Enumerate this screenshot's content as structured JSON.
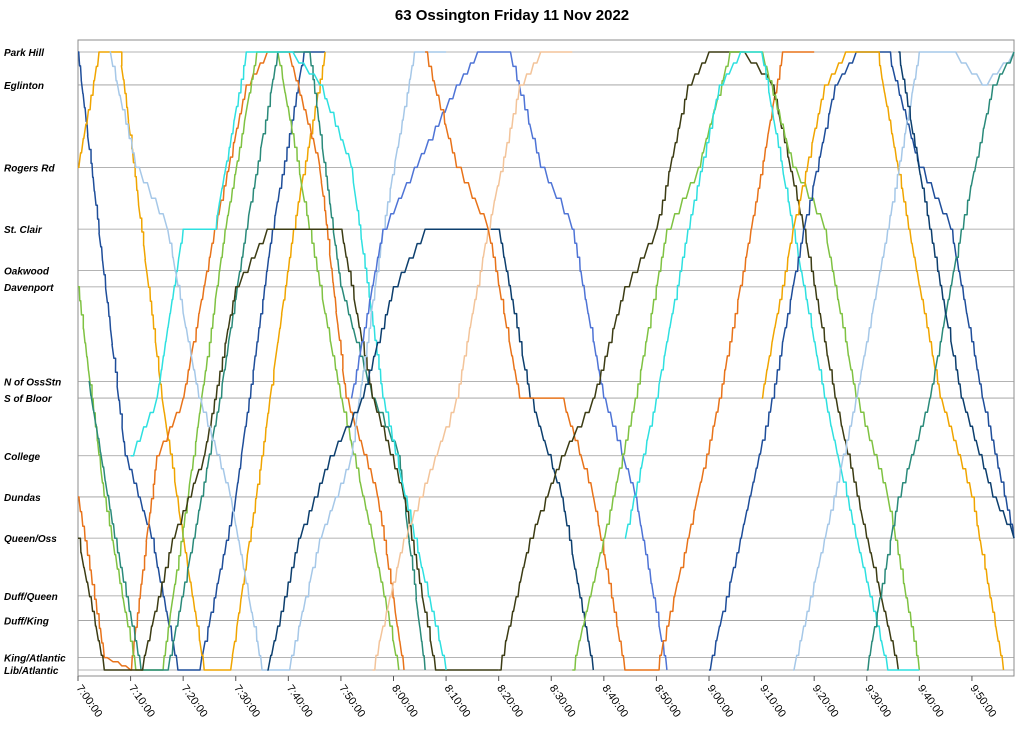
{
  "chart_data": {
    "type": "line",
    "title": "63 Ossington Friday 11 Nov 2022",
    "xlabel": "",
    "ylabel": "",
    "xlim": [
      "7:00:00",
      "9:58:00"
    ],
    "x_ticks": [
      "7:00:00",
      "7:10:00",
      "7:20:00",
      "7:30:00",
      "7:40:00",
      "7:50:00",
      "8:00:00",
      "8:10:00",
      "8:20:00",
      "8:30:00",
      "8:40:00",
      "8:50:00",
      "9:00:00",
      "9:10:00",
      "9:20:00",
      "9:30:00",
      "9:40:00",
      "9:50:00"
    ],
    "stops": [
      {
        "name": "Park Hill",
        "pos": 0
      },
      {
        "name": "Eglinton",
        "pos": 4
      },
      {
        "name": "Rogers Rd",
        "pos": 14
      },
      {
        "name": "St. Clair",
        "pos": 21.5
      },
      {
        "name": "Oakwood",
        "pos": 26.5
      },
      {
        "name": "Davenport",
        "pos": 28.5
      },
      {
        "name": "N of OssStn",
        "pos": 40
      },
      {
        "name": "S of Bloor",
        "pos": 42
      },
      {
        "name": "College",
        "pos": 49
      },
      {
        "name": "Dundas",
        "pos": 54
      },
      {
        "name": "Queen/Oss",
        "pos": 59
      },
      {
        "name": "Duff/Queen",
        "pos": 66
      },
      {
        "name": "Duff/King",
        "pos": 69
      },
      {
        "name": "King/Atlantic",
        "pos": 73.5
      },
      {
        "name": "Lib/Atlantic",
        "pos": 75
      }
    ],
    "grid": true,
    "legend": "none",
    "series": [
      {
        "color": "#1f4e9a",
        "points": [
          [
            "7:00",
            "Park Hill"
          ],
          [
            "7:09",
            "College"
          ],
          [
            "7:14",
            "Queen/Oss"
          ],
          [
            "7:19",
            "Lib/Atlantic"
          ],
          [
            "7:23",
            "Lib/Atlantic"
          ],
          [
            "7:30",
            "Dundas"
          ],
          [
            "7:37",
            "St. Clair"
          ],
          [
            "7:43",
            "Park Hill"
          ],
          [
            "7:47",
            "Park Hill"
          ]
        ]
      },
      {
        "color": "#f0a500",
        "points": [
          [
            "7:00",
            "Rogers Rd"
          ],
          [
            "7:04",
            "Park Hill"
          ],
          [
            "7:08",
            "Park Hill"
          ],
          [
            "7:16",
            "S of Bloor"
          ],
          [
            "7:20",
            "Queen/Oss"
          ],
          [
            "7:24",
            "Lib/Atlantic"
          ],
          [
            "7:29",
            "Lib/Atlantic"
          ],
          [
            "7:35",
            "College"
          ],
          [
            "7:41",
            "St. Clair"
          ],
          [
            "7:47",
            "Park Hill"
          ]
        ]
      },
      {
        "color": "#e8731a",
        "points": [
          [
            "7:00",
            "Dundas"
          ],
          [
            "7:05",
            "King/Atlantic"
          ],
          [
            "7:10",
            "Lib/Atlantic"
          ],
          [
            "7:15",
            "College"
          ],
          [
            "7:20",
            "S of Bloor"
          ],
          [
            "7:26",
            "St. Clair"
          ],
          [
            "7:32",
            "Eglinton"
          ],
          [
            "7:36",
            "Park Hill"
          ],
          [
            "7:40",
            "Park Hill"
          ],
          [
            "7:46",
            "Rogers Rd"
          ],
          [
            "7:51",
            "S of Bloor"
          ],
          [
            "7:57",
            "Dundas"
          ],
          [
            "8:02",
            "Lib/Atlantic"
          ]
        ]
      },
      {
        "color": "#7fc242",
        "points": [
          [
            "7:00",
            "Davenport"
          ],
          [
            "7:05",
            "Dundas"
          ],
          [
            "7:11",
            "Lib/Atlantic"
          ],
          [
            "7:16",
            "Lib/Atlantic"
          ],
          [
            "7:22",
            "College"
          ],
          [
            "7:28",
            "St. Clair"
          ],
          [
            "7:34",
            "Park Hill"
          ],
          [
            "7:38",
            "Park Hill"
          ],
          [
            "7:44",
            "St. Clair"
          ],
          [
            "7:50",
            "S of Bloor"
          ],
          [
            "7:56",
            "Queen/Oss"
          ],
          [
            "8:01",
            "Lib/Atlantic"
          ]
        ]
      },
      {
        "color": "#2a8a7a",
        "points": [
          [
            "7:02",
            "N of OssStn"
          ],
          [
            "7:07",
            "Queen/Oss"
          ],
          [
            "7:12",
            "Lib/Atlantic"
          ],
          [
            "7:17",
            "Lib/Atlantic"
          ],
          [
            "7:22",
            "Queen/Oss"
          ],
          [
            "7:27",
            "S of Bloor"
          ],
          [
            "7:32",
            "St. Clair"
          ],
          [
            "7:38",
            "Park Hill"
          ],
          [
            "7:44",
            "Park Hill"
          ],
          [
            "7:50",
            "Davenport"
          ],
          [
            "7:56",
            "S of Bloor"
          ],
          [
            "8:01",
            "College"
          ],
          [
            "8:06",
            "Lib/Atlantic"
          ]
        ]
      },
      {
        "color": "#3c3c14",
        "points": [
          [
            "7:00",
            "Queen/Oss"
          ],
          [
            "7:05",
            "Lib/Atlantic"
          ],
          [
            "7:12",
            "Lib/Atlantic"
          ],
          [
            "7:18",
            "Queen/Oss"
          ],
          [
            "7:24",
            "College"
          ],
          [
            "7:30",
            "Davenport"
          ],
          [
            "7:36",
            "St. Clair"
          ],
          [
            "7:50",
            "St. Clair"
          ],
          [
            "7:56",
            "S of Bloor"
          ],
          [
            "8:02",
            "Dundas"
          ],
          [
            "8:08",
            "Lib/Atlantic"
          ],
          [
            "8:20",
            "Lib/Atlantic"
          ]
        ]
      },
      {
        "color": "#2ee0e0",
        "points": [
          [
            "7:10",
            "College"
          ],
          [
            "7:15",
            "S of Bloor"
          ],
          [
            "7:20",
            "St. Clair"
          ],
          [
            "7:26",
            "St. Clair"
          ],
          [
            "7:32",
            "Park Hill"
          ],
          [
            "7:40",
            "Park Hill"
          ],
          [
            "7:46",
            "Eglinton"
          ],
          [
            "7:52",
            "Rogers Rd"
          ],
          [
            "7:58",
            "S of Bloor"
          ],
          [
            "8:04",
            "Queen/Oss"
          ],
          [
            "8:10",
            "Lib/Atlantic"
          ]
        ]
      },
      {
        "color": "#a6c8e8",
        "points": [
          [
            "7:06",
            "Park Hill"
          ],
          [
            "7:11",
            "Rogers Rd"
          ],
          [
            "7:17",
            "St. Clair"
          ],
          [
            "7:23",
            "S of Bloor"
          ],
          [
            "7:29",
            "Dundas"
          ],
          [
            "7:35",
            "Lib/Atlantic"
          ],
          [
            "7:40",
            "Lib/Atlantic"
          ],
          [
            "7:46",
            "Queen/Oss"
          ],
          [
            "7:52",
            "College"
          ],
          [
            "7:58",
            "St. Clair"
          ],
          [
            "8:04",
            "Park Hill"
          ],
          [
            "8:10",
            "Park Hill"
          ]
        ]
      },
      {
        "color": "#0d3f6e",
        "points": [
          [
            "7:36",
            "Lib/Atlantic"
          ],
          [
            "7:42",
            "Queen/Oss"
          ],
          [
            "7:48",
            "College"
          ],
          [
            "7:54",
            "S of Bloor"
          ],
          [
            "8:00",
            "Davenport"
          ],
          [
            "8:06",
            "St. Clair"
          ],
          [
            "8:20",
            "St. Clair"
          ],
          [
            "8:26",
            "S of Bloor"
          ],
          [
            "8:32",
            "Dundas"
          ],
          [
            "8:38",
            "Lib/Atlantic"
          ]
        ]
      },
      {
        "color": "#4f74d6",
        "points": [
          [
            "7:52",
            "S of Bloor"
          ],
          [
            "7:58",
            "St. Clair"
          ],
          [
            "8:04",
            "Rogers Rd"
          ],
          [
            "8:12",
            "Eglinton"
          ],
          [
            "8:16",
            "Park Hill"
          ],
          [
            "8:22",
            "Park Hill"
          ],
          [
            "8:28",
            "Rogers Rd"
          ],
          [
            "8:34",
            "St. Clair"
          ],
          [
            "8:40",
            "S of Bloor"
          ],
          [
            "8:46",
            "Dundas"
          ],
          [
            "8:52",
            "Lib/Atlantic"
          ]
        ]
      },
      {
        "color": "#f3c49a",
        "points": [
          [
            "7:56",
            "Lib/Atlantic"
          ],
          [
            "8:02",
            "Queen/Oss"
          ],
          [
            "8:08",
            "College"
          ],
          [
            "8:12",
            "S of Bloor"
          ],
          [
            "8:18",
            "St. Clair"
          ],
          [
            "8:24",
            "Eglinton"
          ],
          [
            "8:28",
            "Park Hill"
          ],
          [
            "8:34",
            "Park Hill"
          ]
        ]
      },
      {
        "color": "#e8731a",
        "points": [
          [
            "8:06",
            "Park Hill"
          ],
          [
            "8:12",
            "Rogers Rd"
          ],
          [
            "8:18",
            "St. Clair"
          ],
          [
            "8:24",
            "S of Bloor"
          ],
          [
            "8:32",
            "S of Bloor"
          ],
          [
            "8:38",
            "Dundas"
          ],
          [
            "8:44",
            "Lib/Atlantic"
          ],
          [
            "8:50",
            "Lib/Atlantic"
          ],
          [
            "8:56",
            "Queen/Oss"
          ],
          [
            "9:02",
            "S of Bloor"
          ],
          [
            "9:08",
            "St. Clair"
          ],
          [
            "9:14",
            "Park Hill"
          ],
          [
            "9:20",
            "Park Hill"
          ]
        ]
      },
      {
        "color": "#3c3c14",
        "points": [
          [
            "8:20",
            "Lib/Atlantic"
          ],
          [
            "8:26",
            "Queen/Oss"
          ],
          [
            "8:32",
            "College"
          ],
          [
            "8:38",
            "S of Bloor"
          ],
          [
            "8:44",
            "Davenport"
          ],
          [
            "8:50",
            "St. Clair"
          ],
          [
            "8:56",
            "Eglinton"
          ],
          [
            "9:00",
            "Park Hill"
          ],
          [
            "9:06",
            "Park Hill"
          ],
          [
            "9:12",
            "Eglinton"
          ],
          [
            "9:18",
            "St. Clair"
          ],
          [
            "9:24",
            "S of Bloor"
          ],
          [
            "9:30",
            "Queen/Oss"
          ],
          [
            "9:36",
            "Lib/Atlantic"
          ]
        ]
      },
      {
        "color": "#7fc242",
        "points": [
          [
            "8:34",
            "Lib/Atlantic"
          ],
          [
            "8:40",
            "Queen/Oss"
          ],
          [
            "8:46",
            "S of Bloor"
          ],
          [
            "8:52",
            "St. Clair"
          ],
          [
            "8:58",
            "Rogers Rd"
          ],
          [
            "9:04",
            "Park Hill"
          ],
          [
            "9:10",
            "Park Hill"
          ],
          [
            "9:16",
            "Rogers Rd"
          ],
          [
            "9:22",
            "St. Clair"
          ],
          [
            "9:28",
            "S of Bloor"
          ],
          [
            "9:34",
            "Dundas"
          ],
          [
            "9:40",
            "Lib/Atlantic"
          ]
        ]
      },
      {
        "color": "#2ee0e0",
        "points": [
          [
            "8:44",
            "Queen/Oss"
          ],
          [
            "8:50",
            "S of Bloor"
          ],
          [
            "8:56",
            "St. Clair"
          ],
          [
            "9:02",
            "Eglinton"
          ],
          [
            "9:06",
            "Park Hill"
          ],
          [
            "9:10",
            "Park Hill"
          ],
          [
            "9:16",
            "St. Clair"
          ],
          [
            "9:22",
            "S of Bloor"
          ],
          [
            "9:28",
            "Queen/Oss"
          ],
          [
            "9:34",
            "Lib/Atlantic"
          ],
          [
            "9:40",
            "Lib/Atlantic"
          ]
        ]
      },
      {
        "color": "#1f4e9a",
        "points": [
          [
            "9:00",
            "Lib/Atlantic"
          ],
          [
            "9:06",
            "Queen/Oss"
          ],
          [
            "9:12",
            "S of Bloor"
          ],
          [
            "9:18",
            "St. Clair"
          ],
          [
            "9:24",
            "Eglinton"
          ],
          [
            "9:28",
            "Park Hill"
          ],
          [
            "9:34",
            "Park Hill"
          ],
          [
            "9:40",
            "Rogers Rd"
          ],
          [
            "9:46",
            "St. Clair"
          ],
          [
            "9:52",
            "S of Bloor"
          ],
          [
            "9:58",
            "Queen/Oss"
          ]
        ]
      },
      {
        "color": "#f0a500",
        "points": [
          [
            "9:10",
            "S of Bloor"
          ],
          [
            "9:16",
            "St. Clair"
          ],
          [
            "9:22",
            "Eglinton"
          ],
          [
            "9:26",
            "Park Hill"
          ],
          [
            "9:32",
            "Park Hill"
          ],
          [
            "9:38",
            "St. Clair"
          ],
          [
            "9:44",
            "S of Bloor"
          ],
          [
            "9:50",
            "Dundas"
          ],
          [
            "9:56",
            "Lib/Atlantic"
          ]
        ]
      },
      {
        "color": "#a6c8e8",
        "points": [
          [
            "9:16",
            "Lib/Atlantic"
          ],
          [
            "9:22",
            "Queen/Oss"
          ],
          [
            "9:28",
            "S of Bloor"
          ],
          [
            "9:34",
            "St. Clair"
          ],
          [
            "9:40",
            "Park Hill"
          ],
          [
            "9:46",
            "Park Hill"
          ],
          [
            "9:52",
            "Eglinton"
          ],
          [
            "9:58",
            "Park Hill"
          ]
        ]
      },
      {
        "color": "#2a8a7a",
        "points": [
          [
            "9:30",
            "Lib/Atlantic"
          ],
          [
            "9:36",
            "Dundas"
          ],
          [
            "9:42",
            "S of Bloor"
          ],
          [
            "9:48",
            "St. Clair"
          ],
          [
            "9:54",
            "Eglinton"
          ],
          [
            "9:58",
            "Park Hill"
          ]
        ]
      },
      {
        "color": "#0d3f6e",
        "points": [
          [
            "9:36",
            "Park Hill"
          ],
          [
            "9:42",
            "St. Clair"
          ],
          [
            "9:48",
            "S of Bloor"
          ],
          [
            "9:54",
            "Dundas"
          ],
          [
            "9:58",
            "Queen/Oss"
          ]
        ]
      }
    ]
  }
}
